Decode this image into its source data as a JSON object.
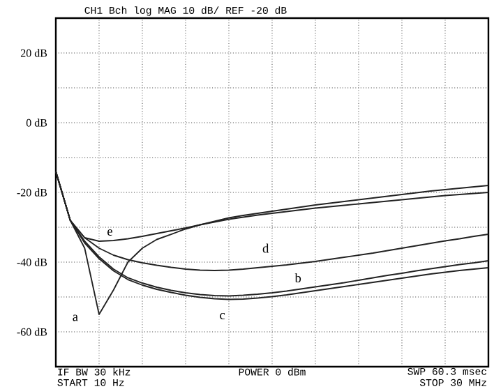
{
  "chart_data": {
    "type": "line",
    "title": "CH1 Bch  log MAG        10 dB/ REF -20 dB",
    "categories": [
      null,
      null,
      null,
      null,
      null,
      null,
      null,
      null,
      null,
      null,
      null,
      null,
      null,
      null,
      null,
      null,
      null,
      null,
      null,
      null,
      null,
      null,
      null,
      null,
      null,
      null,
      null,
      null,
      null,
      null,
      null
    ],
    "ylim": [
      -70,
      30
    ],
    "yticks": [
      {
        "value": 20,
        "label": "20 dB"
      },
      {
        "value": 10,
        "label": null
      },
      {
        "value": 0,
        "label": "0 dB"
      },
      {
        "value": -10,
        "label": null
      },
      {
        "value": -20,
        "label": "-20 dB"
      },
      {
        "value": -30,
        "label": null
      },
      {
        "value": -40,
        "label": "-40 dB"
      },
      {
        "value": -50,
        "label": null
      },
      {
        "value": -60,
        "label": "-60 dB"
      }
    ],
    "tick_labels": "y",
    "grid": true,
    "line_style": "solid",
    "marker": "none",
    "series": [
      {
        "color": "#222222",
        "values": [
          -14,
          -28,
          -36,
          -55,
          -48,
          -40,
          -36,
          -33.5,
          -32,
          -30.5,
          -29.3,
          -28.3,
          -27.3,
          -26.6,
          -26,
          -25.4,
          -24.8,
          -24.2,
          -23.6,
          -23.1,
          -22.6,
          -22.1,
          -21.6,
          -21.1,
          -20.6,
          -20.1,
          -19.6,
          -19.2,
          -18.8,
          -18.4,
          -18
        ]
      },
      {
        "color": "#222222",
        "values": [
          -14,
          -28,
          -34,
          -38.5,
          -42,
          -44.5,
          -46,
          -47.2,
          -48.1,
          -48.8,
          -49.3,
          -49.6,
          -49.7,
          -49.5,
          -49.2,
          -48.8,
          -48.3,
          -47.7,
          -47.1,
          -46.5,
          -45.9,
          -45.2,
          -44.5,
          -43.8,
          -43.2,
          -42.5,
          -41.9,
          -41.3,
          -40.7,
          -40.2,
          -39.6
        ]
      },
      {
        "color": "#222222",
        "values": [
          -14,
          -28,
          -34.5,
          -39,
          -42.5,
          -45,
          -46.6,
          -47.8,
          -48.7,
          -49.5,
          -50.1,
          -50.5,
          -50.7,
          -50.6,
          -50.3,
          -49.9,
          -49.4,
          -48.8,
          -48.2,
          -47.6,
          -47,
          -46.4,
          -45.8,
          -45.2,
          -44.6,
          -44,
          -43.4,
          -42.9,
          -42.4,
          -42,
          -41.6
        ]
      },
      {
        "color": "#222222",
        "values": [
          -14,
          -28,
          -33,
          -36,
          -38,
          -39.3,
          -40.2,
          -40.9,
          -41.5,
          -42,
          -42.3,
          -42.4,
          -42.3,
          -42,
          -41.6,
          -41.2,
          -40.8,
          -40.3,
          -39.8,
          -39.2,
          -38.6,
          -38,
          -37.4,
          -36.7,
          -36,
          -35.3,
          -34.6,
          -33.9,
          -33.3,
          -32.6,
          -32
        ]
      },
      {
        "color": "#222222",
        "values": [
          -14,
          -28,
          -33,
          -34,
          -33.8,
          -33.3,
          -32.6,
          -31.8,
          -31,
          -30.2,
          -29.3,
          -28.5,
          -27.7,
          -27.1,
          -26.5,
          -26,
          -25.5,
          -25,
          -24.5,
          -24.1,
          -23.7,
          -23.3,
          -22.9,
          -22.5,
          -22.1,
          -21.7,
          -21.3,
          -20.9,
          -20.6,
          -20.3,
          -20
        ]
      }
    ],
    "annotations": [
      "a",
      "b",
      "c",
      "d",
      "e",
      "IF BW 30 kHz",
      "START  10 Hz",
      "POWER  0 dBm",
      "SWP  60.3 msec",
      "STOP  30 MHz"
    ]
  }
}
